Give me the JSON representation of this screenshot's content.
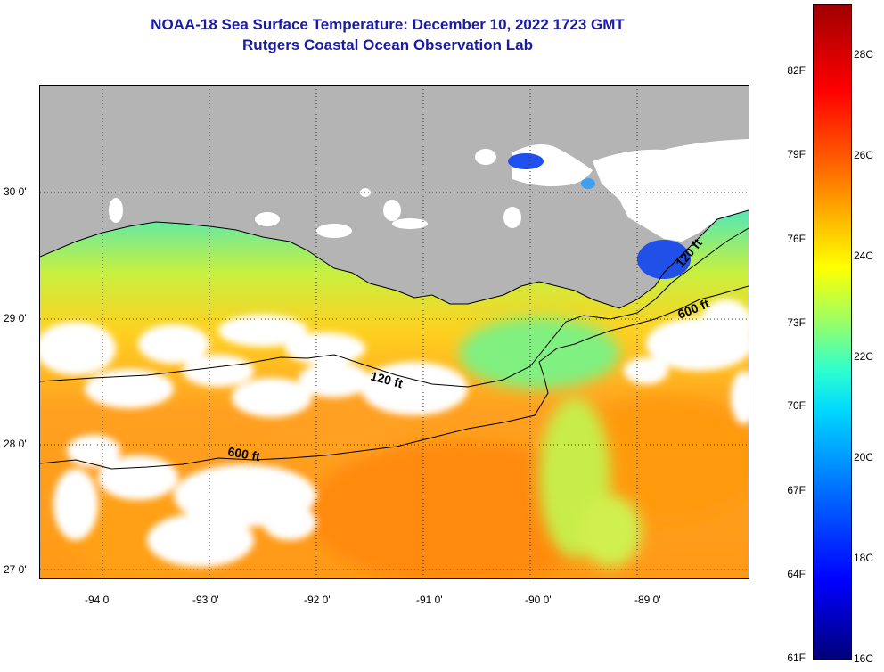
{
  "header": {
    "title_line1": "NOAA-18 Sea Surface Temperature:  December 10, 2022 1723 GMT",
    "title_line2": "Rutgers Coastal Ocean Observation Lab"
  },
  "map": {
    "lat_labels": [
      "30 0'",
      "29 0'",
      "28 0'",
      "27 0'"
    ],
    "lon_labels": [
      "-94 0'",
      "-93 0'",
      "-92 0'",
      "-91 0'",
      "-90 0'",
      "-89 0'"
    ],
    "contour_labels": {
      "shelf_120_west": "120 ft",
      "shelf_120_east": "120 ft",
      "slope_600_west": "600 ft",
      "slope_600_east": "600 ft"
    }
  },
  "colorbar": {
    "fahrenheit_labels": [
      "82F",
      "79F",
      "76F",
      "73F",
      "70F",
      "67F",
      "64F",
      "61F"
    ],
    "celsius_labels": [
      "28C",
      "26C",
      "24C",
      "22C",
      "20C",
      "18C",
      "16C"
    ]
  },
  "colors": {
    "land": "#b4b4b4",
    "cloud": "#ffffff",
    "title": "#1a1aa8"
  }
}
